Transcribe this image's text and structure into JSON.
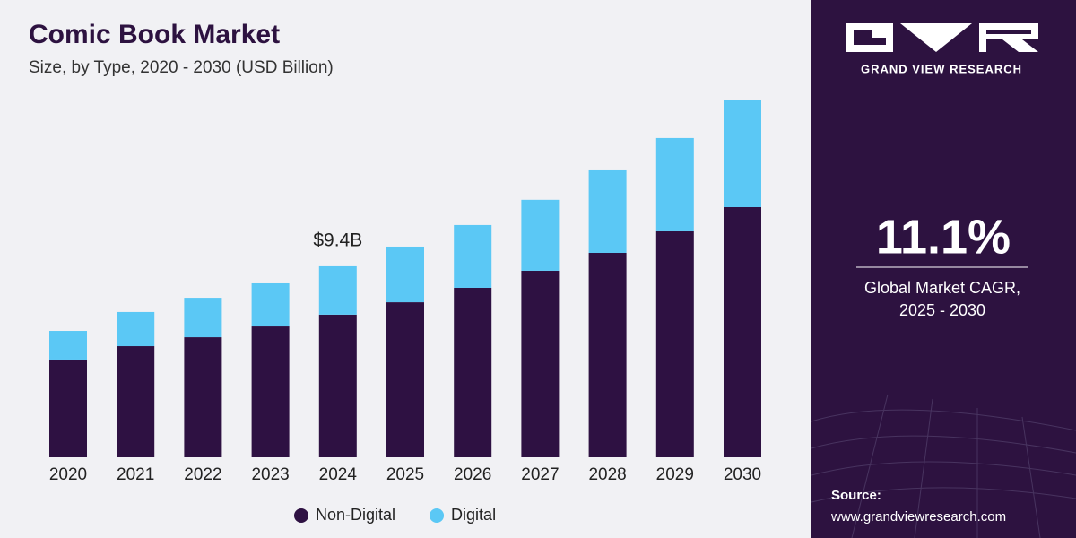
{
  "chart_data": {
    "type": "stacked-bar",
    "title": "Comic Book Market",
    "subtitle": "Size, by Type, 2020 - 2030 (USD Billion)",
    "categories": [
      "2020",
      "2021",
      "2022",
      "2023",
      "2024",
      "2025",
      "2026",
      "2027",
      "2028",
      "2029",
      "2030"
    ],
    "series": [
      {
        "name": "Non-Digital",
        "color": "#2e1142",
        "values": [
          4.81,
          5.47,
          5.91,
          6.44,
          7.02,
          7.63,
          8.34,
          9.18,
          10.06,
          11.12,
          12.31
        ]
      },
      {
        "name": "Digital",
        "color": "#5bc8f5",
        "values": [
          1.41,
          1.68,
          1.94,
          2.12,
          2.38,
          2.74,
          3.09,
          3.49,
          4.06,
          4.59,
          5.25
        ]
      }
    ],
    "annotations": [
      {
        "text": "$9.4B",
        "category": "2024"
      }
    ],
    "legend": "bottom"
  },
  "side_panel": {
    "brand": "GRAND VIEW RESEARCH",
    "cagr": "11.1%",
    "cagr_label": [
      "Global Market CAGR,",
      "2025 - 2030"
    ],
    "source_label": "Source:",
    "source_url": "www.grandviewresearch.com"
  }
}
